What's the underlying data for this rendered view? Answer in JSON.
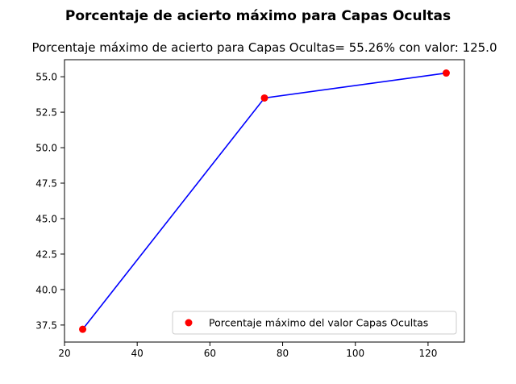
{
  "chart_data": {
    "type": "line",
    "suptitle": "Porcentaje de acierto máximo para Capas Ocultas",
    "title": "Porcentaje máximo de acierto para Capas Ocultas= 55.26% con valor: 125.0",
    "xlabel": "",
    "ylabel": "",
    "x": [
      25,
      75,
      125
    ],
    "y": [
      37.2,
      53.5,
      55.26
    ],
    "xlim": [
      20,
      130
    ],
    "ylim": [
      36.3,
      56.2
    ],
    "xticks": [
      20,
      40,
      60,
      80,
      100,
      120
    ],
    "yticks": [
      37.5,
      40.0,
      42.5,
      45.0,
      47.5,
      50.0,
      52.5,
      55.0
    ],
    "xtick_labels": [
      "20",
      "40",
      "60",
      "80",
      "100",
      "120"
    ],
    "ytick_labels": [
      "37.5",
      "40.0",
      "42.5",
      "45.0",
      "47.5",
      "50.0",
      "52.5",
      "55.0"
    ],
    "line_color": "#0000ff",
    "marker_color": "#ff0000",
    "grid": false,
    "legend": {
      "position": "lower-right",
      "entries": [
        "Porcentaje máximo del valor Capas Ocultas"
      ]
    }
  }
}
